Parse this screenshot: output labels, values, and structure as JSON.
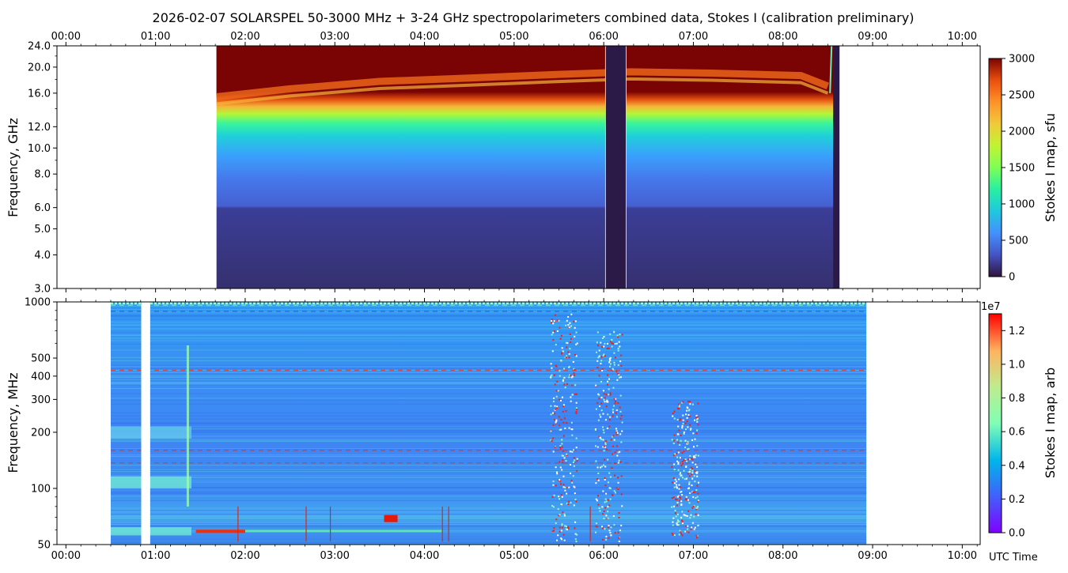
{
  "title": "2026-02-07  SOLARSPEL  50-3000 MHz  +  3-24 GHz  spectropolarimeters combined data,  Stokes I  (calibration preliminary)",
  "time_axis": {
    "label": "UTC Time",
    "range_hours": [
      -0.1,
      10.2
    ],
    "ticks": [
      "00:00",
      "01:00",
      "02:00",
      "03:00",
      "04:00",
      "05:00",
      "06:00",
      "07:00",
      "08:00",
      "09:00",
      "10:00"
    ]
  },
  "chart_data": [
    {
      "type": "heatmap",
      "name": "top-panel",
      "ylabel": "Frequency, GHz",
      "ylim": [
        3.0,
        24.0
      ],
      "yscale": "log",
      "yticks": [
        3.0,
        4.0,
        5.0,
        6.0,
        8.0,
        10.0,
        12.0,
        16.0,
        20.0,
        24.0
      ],
      "ytick_labels": [
        "3.0",
        "4.0",
        "5.0",
        "6.0",
        "8.0",
        "10.0",
        "12.0",
        "16.0",
        "20.0",
        "24.0"
      ],
      "colorbar": {
        "label": "Stokes I map, sfu",
        "range": [
          0,
          3000
        ],
        "ticks": [
          0,
          500,
          1000,
          1500,
          2000,
          2500,
          3000
        ],
        "tick_labels": [
          "0",
          "500",
          "1000",
          "1500",
          "2000",
          "2500",
          "3000"
        ],
        "colormap": "turbo"
      },
      "data_window_hours": [
        1.68,
        8.63
      ],
      "gaps_hours": [
        [
          6.02,
          6.25
        ],
        [
          8.56,
          8.63
        ]
      ],
      "high_flux_boundary_ghz": [
        {
          "t": 1.68,
          "f": 15.5
        },
        {
          "t": 2.5,
          "f": 16.6
        },
        {
          "t": 3.5,
          "f": 17.7
        },
        {
          "t": 4.5,
          "f": 18.2
        },
        {
          "t": 5.5,
          "f": 18.8
        },
        {
          "t": 6.3,
          "f": 19.2
        },
        {
          "t": 7.2,
          "f": 19.0
        },
        {
          "t": 8.2,
          "f": 18.6
        },
        {
          "t": 8.5,
          "f": 17.0
        }
      ]
    },
    {
      "type": "heatmap",
      "name": "bottom-panel",
      "ylabel": "Frequency, MHz",
      "ylim": [
        50,
        1000
      ],
      "yscale": "log",
      "yticks": [
        50,
        100,
        200,
        300,
        400,
        500,
        1000
      ],
      "ytick_labels": [
        "50",
        "100",
        "200",
        "300",
        "400",
        "500",
        "1000"
      ],
      "colorbar": {
        "label": "Stokes I map, arb",
        "offset_text": "1e7",
        "range": [
          0,
          1.3
        ],
        "ticks": [
          0.0,
          0.2,
          0.4,
          0.6,
          0.8,
          1.0,
          1.2
        ],
        "tick_labels": [
          "0.0",
          "0.2",
          "0.4",
          "0.6",
          "0.8",
          "1.0",
          "1.2"
        ],
        "colormap": "rainbow"
      },
      "data_window_hours": [
        0.5,
        8.93
      ],
      "gaps_hours": [
        [
          0.84,
          0.94
        ]
      ],
      "burst_groups_hours": [
        {
          "t": 5.55,
          "f_range_mhz": [
            52,
            900
          ]
        },
        {
          "t": 6.05,
          "f_range_mhz": [
            52,
            700
          ]
        },
        {
          "t": 6.9,
          "f_range_mhz": [
            55,
            300
          ]
        }
      ]
    }
  ]
}
